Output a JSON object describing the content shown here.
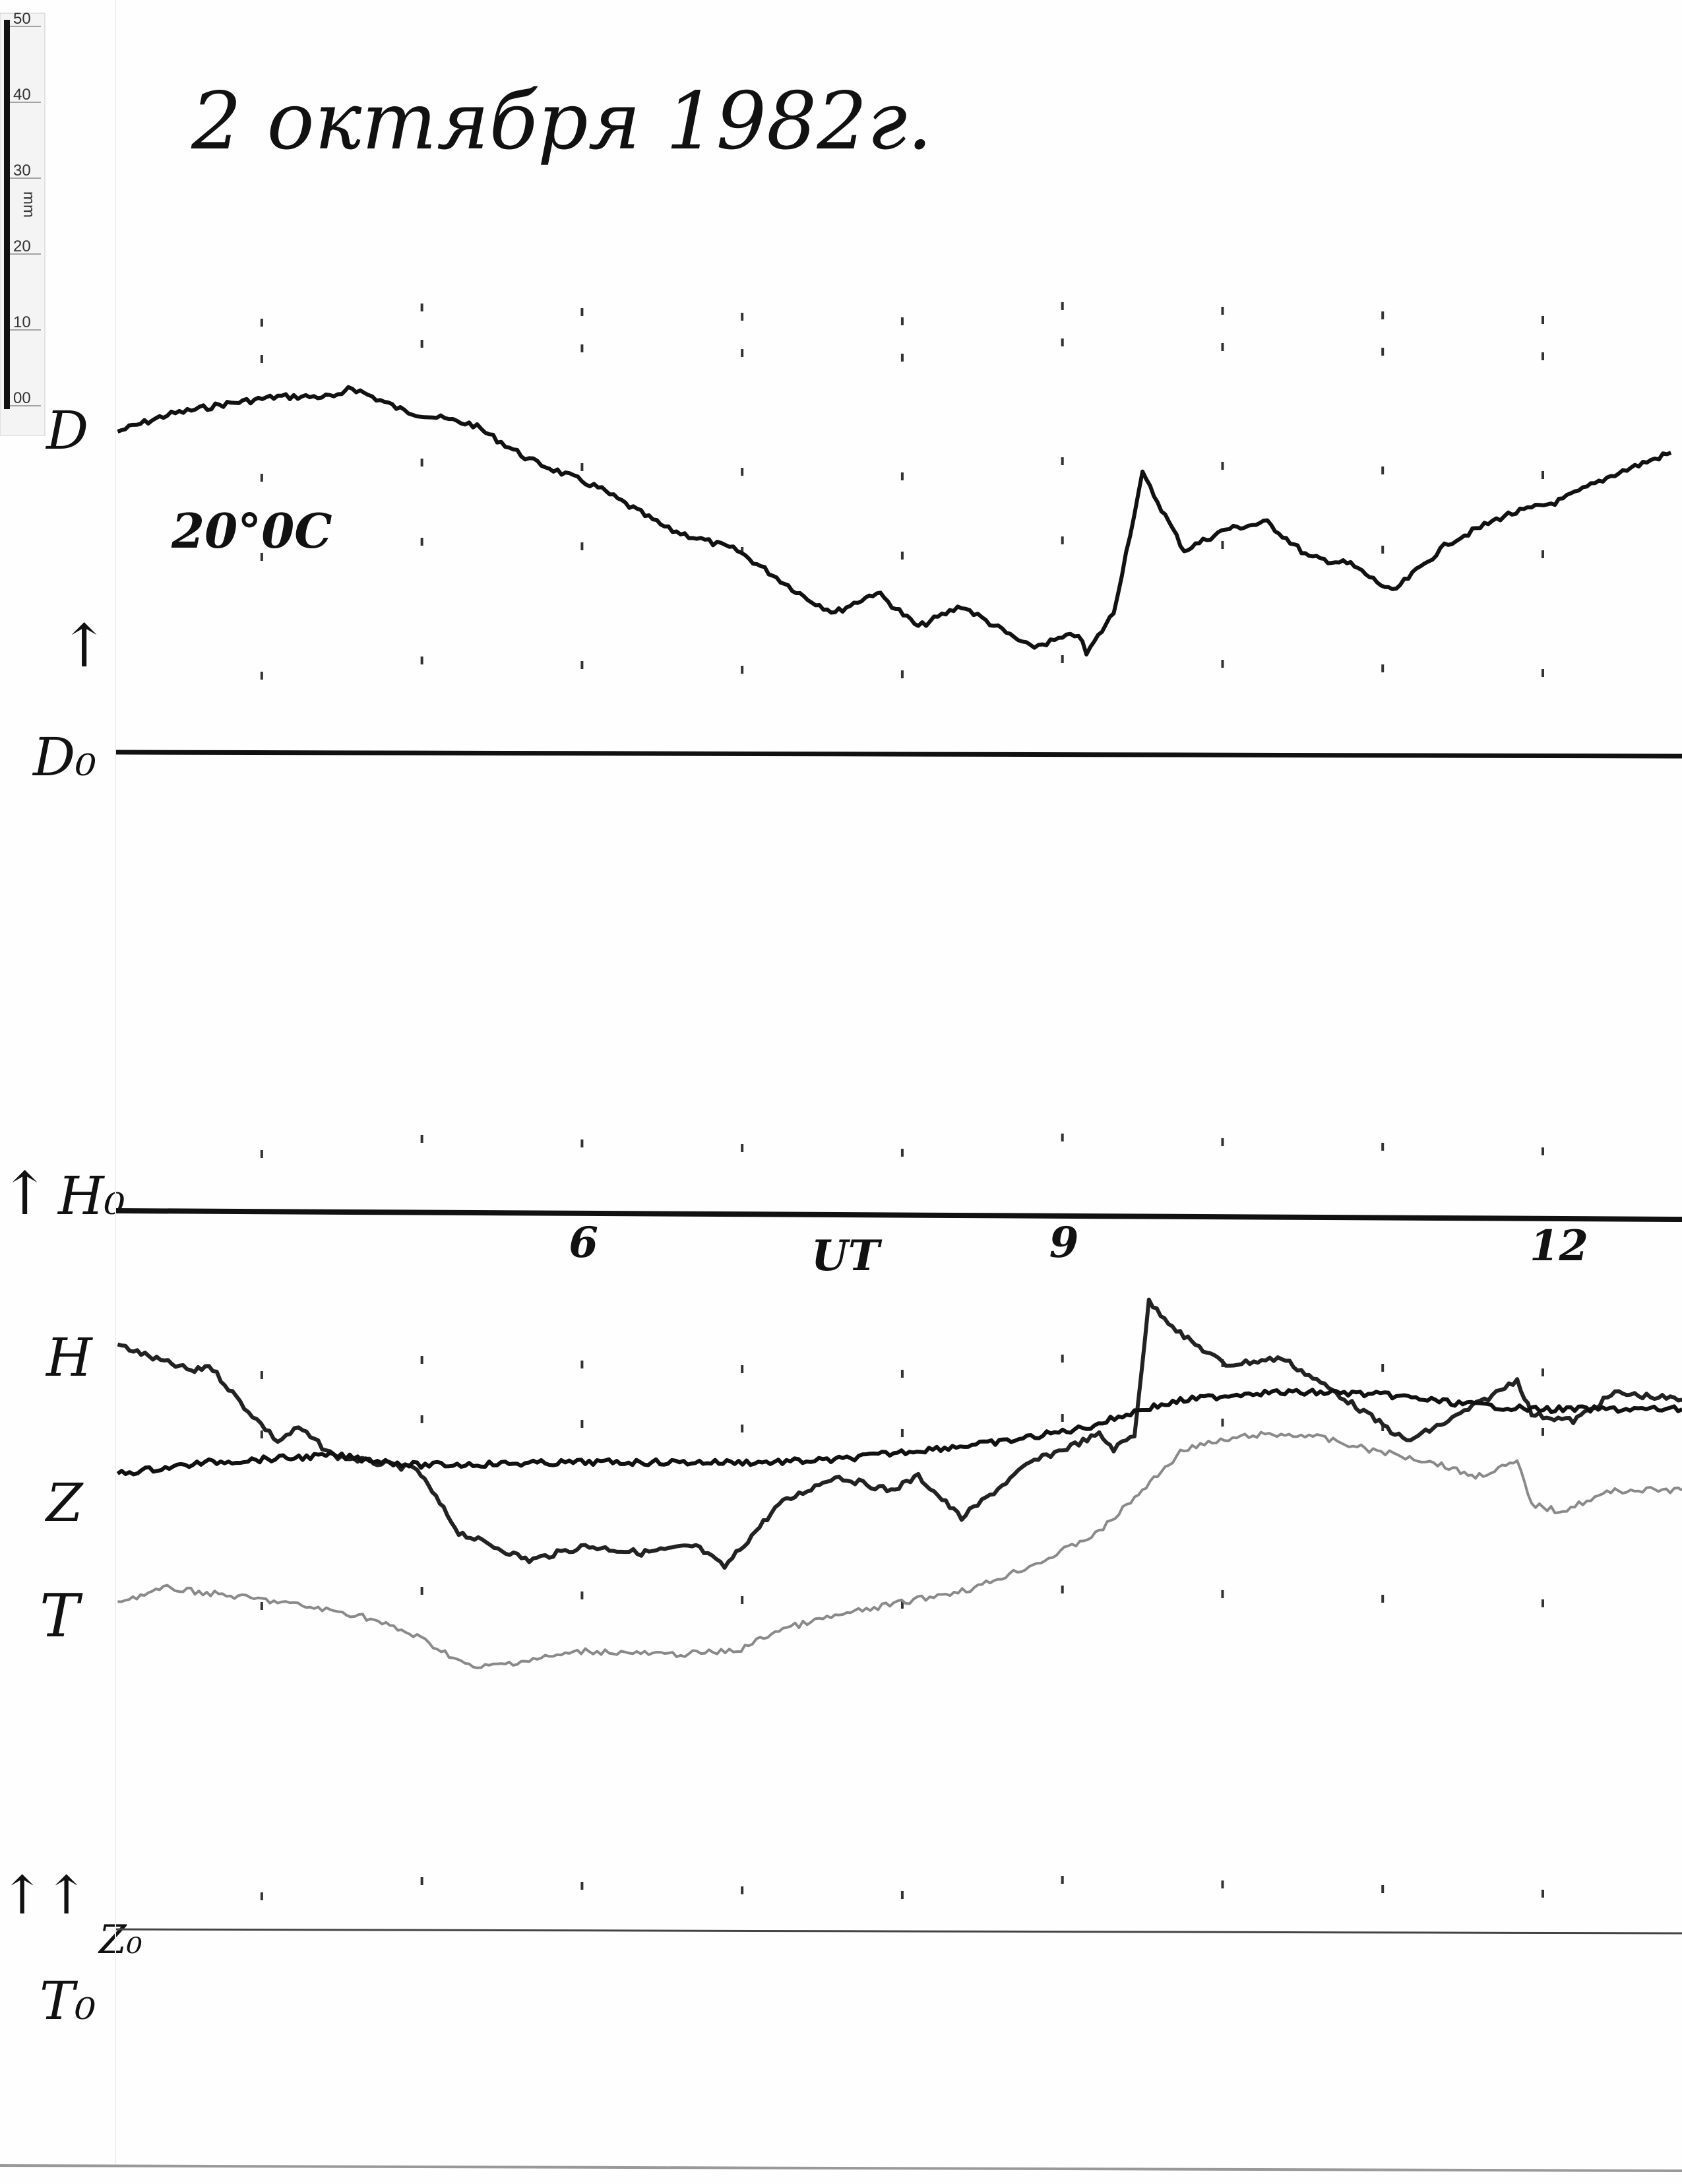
{
  "title": "2 октября 1982г.",
  "temperature_note": "20°0C",
  "ruler": {
    "unit": "mm",
    "ticks": [
      "00",
      "10",
      "20",
      "30",
      "40",
      "50"
    ]
  },
  "labels": {
    "d": "D",
    "d0": "D₀",
    "h0": "H₀",
    "h": "H",
    "z": "Z",
    "t": "T",
    "z0": "Z₀",
    "t0": "T₀",
    "arrow": "↑",
    "double_arrow": "↑↑"
  },
  "time_axis": {
    "unit_label": "UT",
    "tick_labels": [
      "6",
      "9",
      "12"
    ],
    "ticks": [
      6,
      9,
      12
    ],
    "range": [
      3.1,
      12.9
    ]
  },
  "chart_data": {
    "type": "line",
    "title": "2 октября 1982г.",
    "xlabel": "UT",
    "x_ticks": [
      6,
      9,
      12
    ],
    "y_unit": "mm (deflection from baseline)",
    "colors": {
      "D": "#111111",
      "H": "#222222",
      "Z": "#111111",
      "T": "#8a8a8a"
    },
    "series": [
      {
        "name": "D",
        "baseline": "D₀",
        "points": [
          [
            3.1,
            42.5
          ],
          [
            3.41,
            44.7
          ],
          [
            3.76,
            46.1
          ],
          [
            4.1,
            47.1
          ],
          [
            4.5,
            47.1
          ],
          [
            4.54,
            48.5
          ],
          [
            4.89,
            45.2
          ],
          [
            5.32,
            43.4
          ],
          [
            5.67,
            38.8
          ],
          [
            6.1,
            35.1
          ],
          [
            6.54,
            29.6
          ],
          [
            6.97,
            26.8
          ],
          [
            7.41,
            20.4
          ],
          [
            7.58,
            18.6
          ],
          [
            7.84,
            21.3
          ],
          [
            8.1,
            16.7
          ],
          [
            8.37,
            19.5
          ],
          [
            8.8,
            14.0
          ],
          [
            9.1,
            15.8
          ],
          [
            9.15,
            13.1
          ],
          [
            9.32,
            18.6
          ],
          [
            9.5,
            36.9
          ],
          [
            9.76,
            26.8
          ],
          [
            10.02,
            29.6
          ],
          [
            10.28,
            30.5
          ],
          [
            10.54,
            25.9
          ],
          [
            10.8,
            25.0
          ],
          [
            11.06,
            21.3
          ],
          [
            11.41,
            27.8
          ],
          [
            11.76,
            31.4
          ],
          [
            12.1,
            33.3
          ],
          [
            12.45,
            36.9
          ],
          [
            12.8,
            39.7
          ]
        ]
      },
      {
        "name": "H",
        "baseline": "H₀",
        "points": [
          [
            3.1,
            -17.5
          ],
          [
            3.32,
            -19.3
          ],
          [
            3.58,
            -21.1
          ],
          [
            3.67,
            -20.2
          ],
          [
            3.89,
            -25.7
          ],
          [
            4.1,
            -30.3
          ],
          [
            4.23,
            -28.5
          ],
          [
            4.45,
            -32.2
          ],
          [
            4.97,
            -34.0
          ],
          [
            5.23,
            -42.3
          ],
          [
            5.67,
            -46.0
          ],
          [
            6.02,
            -44.1
          ],
          [
            6.37,
            -45.0
          ],
          [
            6.71,
            -44.1
          ],
          [
            6.89,
            -46.9
          ],
          [
            7.23,
            -38.6
          ],
          [
            7.58,
            -34.9
          ],
          [
            7.93,
            -36.8
          ],
          [
            8.1,
            -34.9
          ],
          [
            8.37,
            -40.4
          ],
          [
            8.8,
            -33.1
          ],
          [
            9.23,
            -29.4
          ],
          [
            9.32,
            -31.3
          ],
          [
            9.45,
            -29.4
          ],
          [
            9.54,
            -11.9
          ],
          [
            9.76,
            -16.5
          ],
          [
            10.02,
            -20.2
          ],
          [
            10.37,
            -19.3
          ],
          [
            10.71,
            -23.9
          ],
          [
            11.15,
            -30.3
          ],
          [
            11.41,
            -27.6
          ],
          [
            11.71,
            -23.9
          ],
          [
            11.84,
            -22.1
          ],
          [
            11.93,
            -26.7
          ],
          [
            12.19,
            -27.6
          ],
          [
            12.45,
            -23.9
          ],
          [
            12.87,
            -24.8
          ]
        ]
      },
      {
        "name": "Z",
        "baseline": "Z₀",
        "points": [
          [
            3.1,
            60.3
          ],
          [
            3.67,
            61.8
          ],
          [
            4.45,
            62.7
          ],
          [
            4.97,
            61.4
          ],
          [
            6.02,
            61.8
          ],
          [
            7.15,
            61.8
          ],
          [
            7.58,
            62.1
          ],
          [
            8.02,
            63.2
          ],
          [
            8.63,
            64.5
          ],
          [
            9.15,
            66.4
          ],
          [
            9.5,
            68.8
          ],
          [
            9.76,
            70.0
          ],
          [
            10.19,
            71.0
          ],
          [
            10.71,
            71.0
          ],
          [
            11.06,
            70.6
          ],
          [
            11.5,
            69.5
          ],
          [
            11.93,
            68.8
          ],
          [
            12.37,
            68.8
          ],
          [
            12.87,
            68.8
          ]
        ]
      },
      {
        "name": "T",
        "baseline": "T₀",
        "points": [
          [
            3.1,
            43.4
          ],
          [
            3.41,
            45.2
          ],
          [
            4.1,
            43.4
          ],
          [
            4.63,
            41.5
          ],
          [
            4.97,
            38.8
          ],
          [
            5.32,
            34.6
          ],
          [
            5.67,
            35.7
          ],
          [
            6.02,
            36.9
          ],
          [
            6.54,
            36.4
          ],
          [
            6.97,
            36.9
          ],
          [
            7.23,
            39.7
          ],
          [
            7.58,
            41.5
          ],
          [
            8.02,
            43.4
          ],
          [
            8.45,
            45.2
          ],
          [
            8.89,
            48.9
          ],
          [
            9.23,
            52.6
          ],
          [
            9.5,
            58.1
          ],
          [
            9.76,
            63.6
          ],
          [
            10.19,
            65.4
          ],
          [
            10.54,
            65.4
          ],
          [
            10.89,
            63.6
          ],
          [
            11.32,
            61.8
          ],
          [
            11.58,
            59.9
          ],
          [
            11.84,
            61.8
          ],
          [
            11.93,
            56.3
          ],
          [
            12.1,
            55.3
          ],
          [
            12.45,
            58.1
          ],
          [
            12.87,
            58.1
          ]
        ]
      }
    ]
  }
}
